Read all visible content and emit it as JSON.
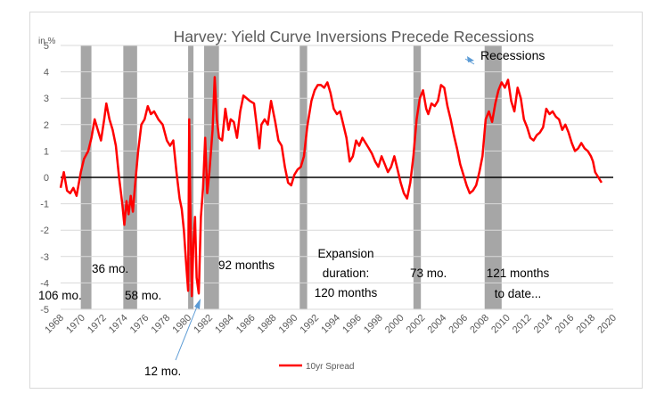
{
  "chart_data": {
    "type": "line",
    "title": "Harvey: Yield Curve Inversions Precede Recessions",
    "ylabel": "in %",
    "xlabel": "",
    "ylim": [
      -5,
      5
    ],
    "xlim": [
      1968,
      2020
    ],
    "y_ticks": [
      5,
      4,
      3,
      2,
      1,
      0,
      -1,
      -2,
      -3,
      -4,
      -5
    ],
    "x_ticks": [
      "1968",
      "1970",
      "1972",
      "1974",
      "1976",
      "1978",
      "1980",
      "1982",
      "1984",
      "1986",
      "1988",
      "1990",
      "1992",
      "1994",
      "1996",
      "1998",
      "2000",
      "2002",
      "2004",
      "2006",
      "2008",
      "2010",
      "2012",
      "2014",
      "2016",
      "2018",
      "2020"
    ],
    "grid": "horizontal",
    "legend": {
      "position": "bottom",
      "entries": [
        "10yr Spread"
      ]
    },
    "series": [
      {
        "name": "10yr Spread",
        "color": "#ff0000",
        "points": [
          [
            1968.0,
            -0.4
          ],
          [
            1968.3,
            0.2
          ],
          [
            1968.6,
            -0.5
          ],
          [
            1968.9,
            -0.6
          ],
          [
            1969.2,
            -0.4
          ],
          [
            1969.5,
            -0.7
          ],
          [
            1969.9,
            0.2
          ],
          [
            1970.2,
            0.7
          ],
          [
            1970.6,
            1.0
          ],
          [
            1970.9,
            1.5
          ],
          [
            1971.2,
            2.2
          ],
          [
            1971.5,
            1.8
          ],
          [
            1971.8,
            1.4
          ],
          [
            1972.1,
            2.2
          ],
          [
            1972.3,
            2.8
          ],
          [
            1972.6,
            2.2
          ],
          [
            1972.9,
            1.8
          ],
          [
            1973.2,
            1.2
          ],
          [
            1973.5,
            0.0
          ],
          [
            1973.8,
            -1.0
          ],
          [
            1974.0,
            -1.8
          ],
          [
            1974.2,
            -0.9
          ],
          [
            1974.4,
            -1.4
          ],
          [
            1974.6,
            -0.7
          ],
          [
            1974.8,
            -1.3
          ],
          [
            1975.0,
            -0.3
          ],
          [
            1975.3,
            1.0
          ],
          [
            1975.6,
            2.0
          ],
          [
            1975.9,
            2.2
          ],
          [
            1976.2,
            2.7
          ],
          [
            1976.5,
            2.4
          ],
          [
            1976.8,
            2.5
          ],
          [
            1977.2,
            2.2
          ],
          [
            1977.6,
            2.0
          ],
          [
            1978.0,
            1.4
          ],
          [
            1978.3,
            1.2
          ],
          [
            1978.6,
            1.4
          ],
          [
            1978.9,
            0.2
          ],
          [
            1979.2,
            -0.8
          ],
          [
            1979.4,
            -1.2
          ],
          [
            1979.6,
            -2.0
          ],
          [
            1979.8,
            -3.2
          ],
          [
            1980.0,
            -4.3
          ],
          [
            1980.1,
            2.2
          ],
          [
            1980.2,
            -1.0
          ],
          [
            1980.35,
            -4.5
          ],
          [
            1980.5,
            -2.5
          ],
          [
            1980.65,
            -1.5
          ],
          [
            1980.8,
            -3.8
          ],
          [
            1981.0,
            -4.4
          ],
          [
            1981.2,
            -1.5
          ],
          [
            1981.4,
            -0.4
          ],
          [
            1981.6,
            1.5
          ],
          [
            1981.8,
            -0.6
          ],
          [
            1982.0,
            0.2
          ],
          [
            1982.3,
            1.8
          ],
          [
            1982.5,
            3.8
          ],
          [
            1982.7,
            2.2
          ],
          [
            1982.9,
            1.5
          ],
          [
            1983.2,
            1.4
          ],
          [
            1983.5,
            2.6
          ],
          [
            1983.8,
            1.8
          ],
          [
            1984.0,
            2.2
          ],
          [
            1984.3,
            2.1
          ],
          [
            1984.6,
            1.5
          ],
          [
            1984.9,
            2.5
          ],
          [
            1985.2,
            3.1
          ],
          [
            1985.5,
            3.0
          ],
          [
            1985.8,
            2.9
          ],
          [
            1986.2,
            2.8
          ],
          [
            1986.5,
            1.8
          ],
          [
            1986.7,
            1.1
          ],
          [
            1986.9,
            2.0
          ],
          [
            1987.2,
            2.2
          ],
          [
            1987.5,
            2.0
          ],
          [
            1987.8,
            2.9
          ],
          [
            1988.2,
            2.1
          ],
          [
            1988.5,
            1.4
          ],
          [
            1988.8,
            1.2
          ],
          [
            1989.1,
            0.4
          ],
          [
            1989.4,
            -0.2
          ],
          [
            1989.7,
            -0.3
          ],
          [
            1990.0,
            0.1
          ],
          [
            1990.3,
            0.3
          ],
          [
            1990.6,
            0.4
          ],
          [
            1990.9,
            0.8
          ],
          [
            1991.2,
            1.9
          ],
          [
            1991.6,
            2.9
          ],
          [
            1991.9,
            3.3
          ],
          [
            1992.2,
            3.5
          ],
          [
            1992.5,
            3.5
          ],
          [
            1992.8,
            3.4
          ],
          [
            1993.1,
            3.6
          ],
          [
            1993.4,
            3.2
          ],
          [
            1993.7,
            2.6
          ],
          [
            1994.0,
            2.4
          ],
          [
            1994.3,
            2.5
          ],
          [
            1994.6,
            2.0
          ],
          [
            1994.9,
            1.5
          ],
          [
            1995.2,
            0.6
          ],
          [
            1995.5,
            0.8
          ],
          [
            1995.8,
            1.4
          ],
          [
            1996.1,
            1.2
          ],
          [
            1996.4,
            1.5
          ],
          [
            1996.7,
            1.3
          ],
          [
            1997.0,
            1.1
          ],
          [
            1997.3,
            0.9
          ],
          [
            1997.6,
            0.6
          ],
          [
            1997.9,
            0.4
          ],
          [
            1998.2,
            0.8
          ],
          [
            1998.5,
            0.5
          ],
          [
            1998.8,
            0.2
          ],
          [
            1999.1,
            0.4
          ],
          [
            1999.4,
            0.8
          ],
          [
            1999.7,
            0.3
          ],
          [
            2000.0,
            -0.2
          ],
          [
            2000.3,
            -0.6
          ],
          [
            2000.6,
            -0.8
          ],
          [
            2000.9,
            -0.2
          ],
          [
            2001.2,
            0.8
          ],
          [
            2001.5,
            2.2
          ],
          [
            2001.8,
            3.0
          ],
          [
            2002.1,
            3.3
          ],
          [
            2002.4,
            2.6
          ],
          [
            2002.6,
            2.4
          ],
          [
            2002.9,
            2.8
          ],
          [
            2003.2,
            2.7
          ],
          [
            2003.5,
            2.9
          ],
          [
            2003.8,
            3.5
          ],
          [
            2004.1,
            3.4
          ],
          [
            2004.4,
            2.7
          ],
          [
            2004.7,
            2.2
          ],
          [
            2005.0,
            1.6
          ],
          [
            2005.3,
            1.1
          ],
          [
            2005.6,
            0.5
          ],
          [
            2005.9,
            0.1
          ],
          [
            2006.2,
            -0.3
          ],
          [
            2006.5,
            -0.6
          ],
          [
            2006.8,
            -0.5
          ],
          [
            2007.1,
            -0.3
          ],
          [
            2007.4,
            0.2
          ],
          [
            2007.7,
            0.8
          ],
          [
            2008.0,
            2.2
          ],
          [
            2008.3,
            2.5
          ],
          [
            2008.6,
            2.1
          ],
          [
            2008.9,
            2.8
          ],
          [
            2009.2,
            3.3
          ],
          [
            2009.5,
            3.6
          ],
          [
            2009.8,
            3.4
          ],
          [
            2010.1,
            3.7
          ],
          [
            2010.4,
            2.9
          ],
          [
            2010.7,
            2.5
          ],
          [
            2011.0,
            3.4
          ],
          [
            2011.3,
            3.0
          ],
          [
            2011.6,
            2.2
          ],
          [
            2011.9,
            1.9
          ],
          [
            2012.2,
            1.5
          ],
          [
            2012.5,
            1.4
          ],
          [
            2012.8,
            1.6
          ],
          [
            2013.1,
            1.7
          ],
          [
            2013.4,
            1.9
          ],
          [
            2013.7,
            2.6
          ],
          [
            2014.0,
            2.4
          ],
          [
            2014.3,
            2.5
          ],
          [
            2014.6,
            2.3
          ],
          [
            2014.9,
            2.2
          ],
          [
            2015.2,
            1.8
          ],
          [
            2015.5,
            2.0
          ],
          [
            2015.8,
            1.7
          ],
          [
            2016.1,
            1.3
          ],
          [
            2016.4,
            1.0
          ],
          [
            2016.7,
            1.1
          ],
          [
            2017.0,
            1.3
          ],
          [
            2017.3,
            1.1
          ],
          [
            2017.6,
            1.0
          ],
          [
            2017.9,
            0.8
          ],
          [
            2018.1,
            0.6
          ],
          [
            2018.3,
            0.2
          ],
          [
            2018.6,
            0.0
          ],
          [
            2018.9,
            -0.2
          ]
        ]
      }
    ],
    "recessions": [
      {
        "start": 1969.9,
        "end": 1970.9
      },
      {
        "start": 1973.9,
        "end": 1975.2
      },
      {
        "start": 1980.0,
        "end": 1980.5
      },
      {
        "start": 1981.5,
        "end": 1982.9
      },
      {
        "start": 1990.5,
        "end": 1991.2
      },
      {
        "start": 2001.2,
        "end": 2001.9
      },
      {
        "start": 2007.9,
        "end": 2009.5
      }
    ],
    "annotations": {
      "recessions_label": "Recessions",
      "lead_106": "106 mo.",
      "lead_36": "36 mo.",
      "lead_58": "58 mo.",
      "lead_12": "12 mo.",
      "exp_92": "92 months",
      "exp_120_a": "Expansion",
      "exp_120_b": "duration:",
      "exp_120_c": "120 months",
      "exp_73": "73 mo.",
      "exp_121_a": "121 months",
      "exp_121_b": "to date..."
    },
    "colors": {
      "line": "#ff0000",
      "recession": "#a6a6a6",
      "arrow": "#5b9bd5",
      "zero_line": "#000000",
      "grid": "#d9d9d9"
    }
  }
}
